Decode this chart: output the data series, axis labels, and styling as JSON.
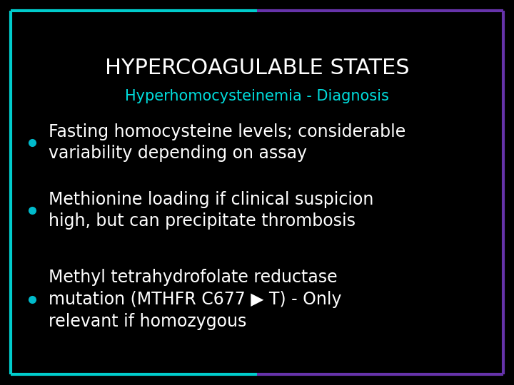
{
  "background_color": "#000000",
  "border_color_left": "#00cccc",
  "border_color_right": "#6633aa",
  "title": "HYPERCOAGULABLE STATES",
  "subtitle": "Hyperhomocysteinemia - Diagnosis",
  "title_color": "#ffffff",
  "subtitle_color": "#00dddd",
  "title_fontsize": 22,
  "subtitle_fontsize": 15,
  "bullet_color": "#00bbcc",
  "bullet_text_color": "#ffffff",
  "bullet_fontsize": 17,
  "border_lw": 3,
  "bullets": [
    "Fasting homocysteine levels; considerable\nvariability depending on assay",
    "Methionine loading if clinical suspicion\nhigh, but can precipitate thrombosis",
    "Methyl tetrahydrofolate reductase\nmutation (MTHFR C677 ▶ T) - Only\nrelevant if homozygous"
  ]
}
